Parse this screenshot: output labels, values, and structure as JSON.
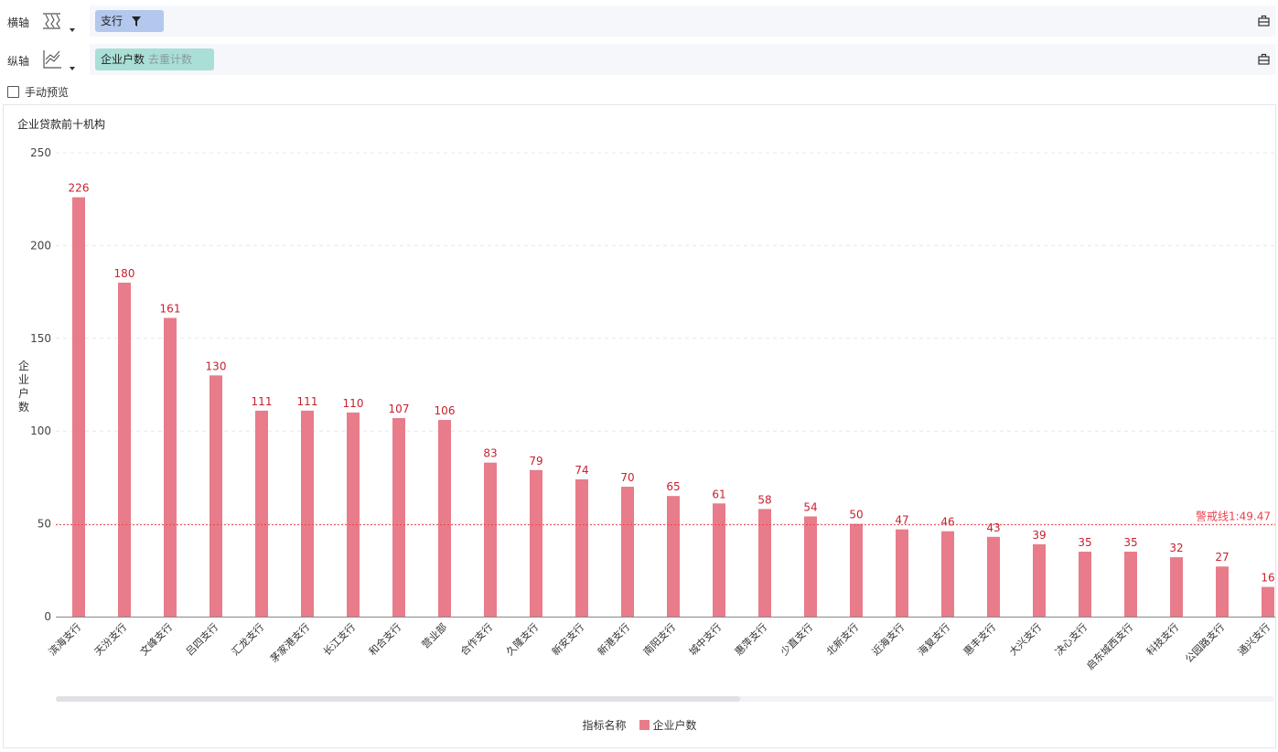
{
  "shelves": {
    "x_axis": {
      "label": "横轴",
      "pill": "支行"
    },
    "y_axis": {
      "label": "纵轴",
      "pill": "企业户数",
      "pill_sub": "去重计数"
    }
  },
  "manual_preview": {
    "label": "手动预览",
    "checked": false
  },
  "legend": {
    "title": "指标名称",
    "series": "企业户数",
    "color": "#e87c8a"
  },
  "chart_data": {
    "type": "bar",
    "title": "企业贷款前十机构",
    "xlabel": "",
    "ylabel": "企业户数",
    "ylim": [
      0,
      250
    ],
    "yticks": [
      0,
      50,
      100,
      150,
      200,
      250
    ],
    "grid": true,
    "legend_position": "bottom",
    "bar_color": "#e87c8a",
    "label_color": "#c8202f",
    "categories": [
      "滨海支行",
      "天汾支行",
      "文峰支行",
      "吕四支行",
      "汇龙支行",
      "茅家港支行",
      "长江支行",
      "和合支行",
      "营业部",
      "合作支行",
      "久隆支行",
      "新安支行",
      "新港支行",
      "南阳支行",
      "城中支行",
      "惠萍支行",
      "少直支行",
      "北新支行",
      "近海支行",
      "海复支行",
      "惠丰支行",
      "大兴支行",
      "决心支行",
      "启东城西支行",
      "科技支行",
      "公园路支行",
      "通兴支行"
    ],
    "series": [
      {
        "name": "企业户数",
        "values": [
          226,
          180,
          161,
          130,
          111,
          111,
          110,
          107,
          106,
          83,
          79,
          74,
          70,
          65,
          61,
          58,
          54,
          50,
          47,
          46,
          43,
          39,
          35,
          35,
          32,
          27,
          16
        ]
      }
    ],
    "reference_line": {
      "label": "警戒线1:49.47",
      "value": 49.47,
      "color": "#e8434e"
    }
  }
}
